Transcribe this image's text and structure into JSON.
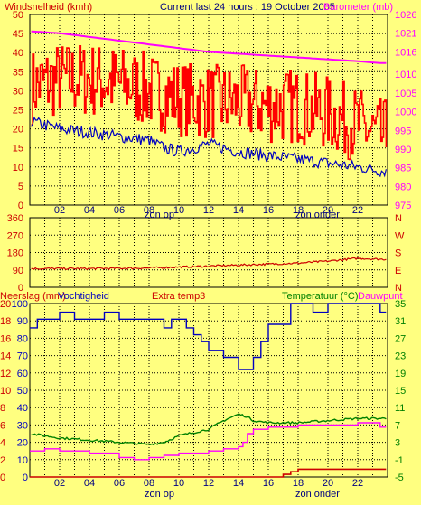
{
  "header": {
    "left_label": "Windsnelheid (kmh)",
    "center_label": "Current last 24 hours : 19 October 2005",
    "right_label": "Barometer (mb)"
  },
  "panel3_header": {
    "rain_label": "Neerslag (mm)",
    "humidity_label": "Vochtigheid",
    "extra_label": "Extra temp3",
    "temp_label": "Temperatuur (°C)",
    "dew_label": "Dauwpunt"
  },
  "markers": {
    "sunrise": "zon op",
    "sunset": "zon onder"
  },
  "colors": {
    "background": "#FFFF80",
    "wind": "#FF0000",
    "wind_avg": "#0000C0",
    "barometer": "#FF00FF",
    "direction": "#CC0000",
    "humidity": "#0000C0",
    "temperature": "#008000",
    "dewpoint": "#FF00FF",
    "rain": "#CC0000"
  },
  "chart_data": [
    {
      "type": "line",
      "name": "wind-barometer",
      "x_ticks": [
        "02",
        "04",
        "06",
        "08",
        "10",
        "12",
        "14",
        "16",
        "18",
        "20",
        "22"
      ],
      "x_range": [
        0,
        24
      ],
      "y_left": {
        "label": "Windsnelheid (kmh)",
        "range": [
          0,
          50
        ],
        "ticks": [
          0,
          5,
          10,
          15,
          20,
          25,
          30,
          35,
          40,
          45,
          50
        ]
      },
      "y_right": {
        "label": "Barometer (mb)",
        "range": [
          975,
          1026
        ],
        "ticks": [
          975,
          980,
          985,
          990,
          995,
          1000,
          1005,
          1010,
          1016,
          1021,
          1026
        ]
      },
      "series": [
        {
          "name": "Windsnelheid (kmh)",
          "axis": "left",
          "style": "jagged",
          "x": [
            0,
            2,
            4,
            6,
            8,
            10,
            12,
            14,
            16,
            18,
            20,
            22,
            23.5
          ],
          "y": [
            30,
            32,
            32,
            31,
            29,
            27,
            26,
            26,
            25,
            25,
            23,
            20,
            17
          ]
        },
        {
          "name": "Windsnelheid (kmh)",
          "axis": "left",
          "x": [
            0,
            2,
            4,
            6,
            8,
            9,
            10,
            12,
            14,
            16,
            18,
            20,
            22,
            23.5
          ],
          "y": [
            22,
            20,
            19,
            18,
            17,
            15,
            14,
            16,
            14,
            13,
            12,
            11,
            10,
            9
          ]
        },
        {
          "name": "Barometer (mb)",
          "axis": "right",
          "x": [
            0,
            2,
            4,
            6,
            8,
            10,
            12,
            14,
            16,
            18,
            20,
            22,
            23.5
          ],
          "y": [
            1021.5,
            1021,
            1020,
            1019,
            1018,
            1017,
            1016,
            1015.5,
            1015,
            1014.5,
            1014,
            1013.5,
            1013
          ]
        }
      ]
    },
    {
      "type": "line",
      "name": "wind-direction",
      "x_range": [
        0,
        24
      ],
      "y_left": {
        "range": [
          0,
          360
        ],
        "ticks": [
          0,
          90,
          180,
          270,
          360
        ]
      },
      "y_right_labels": [
        "N",
        "W",
        "S",
        "E",
        "N"
      ],
      "series": [
        {
          "name": "direction",
          "axis": "left",
          "x": [
            0,
            4,
            8,
            10,
            12,
            14,
            16,
            18,
            20,
            22,
            23.5
          ],
          "y": [
            97,
            97,
            100,
            105,
            110,
            115,
            120,
            125,
            135,
            150,
            145
          ]
        }
      ]
    },
    {
      "type": "line",
      "name": "humidity-temperature",
      "x_ticks": [
        "02",
        "04",
        "06",
        "08",
        "10",
        "12",
        "14",
        "16",
        "18",
        "20",
        "22"
      ],
      "x_range": [
        0,
        24
      ],
      "y_left_outer": {
        "label": "Neerslag (mm)",
        "ticks": [
          0,
          2,
          4,
          6,
          8,
          10,
          12,
          14,
          16,
          18,
          20
        ]
      },
      "y_left_inner": {
        "label": "Vochtigheid",
        "range": [
          0,
          100
        ],
        "ticks": [
          0,
          10,
          20,
          30,
          40,
          50,
          60,
          70,
          80,
          90,
          100
        ]
      },
      "y_right": {
        "label": "Temperatuur (°C)",
        "range": [
          -5,
          35
        ],
        "ticks": [
          -5,
          -1,
          3,
          7,
          11,
          15,
          19,
          23,
          27,
          31,
          35
        ]
      },
      "series": [
        {
          "name": "Vochtigheid",
          "axis": "left_inner",
          "step": true,
          "x": [
            0,
            0.5,
            2,
            3,
            5,
            6,
            7,
            8,
            9,
            9.5,
            10,
            10.5,
            11,
            11.5,
            12,
            12.5,
            13,
            14,
            14.5,
            15,
            15.5,
            16,
            17,
            17.5,
            18,
            19,
            20,
            21,
            22,
            23,
            23.5
          ],
          "y": [
            86,
            91,
            95,
            91,
            95,
            91,
            91,
            91,
            86,
            91,
            91,
            86,
            82,
            78,
            73,
            73,
            69,
            62,
            62,
            69,
            78,
            88,
            88,
            100,
            100,
            95,
            100,
            100,
            100,
            100,
            95
          ]
        },
        {
          "name": "Temperatuur (°C)",
          "axis": "right",
          "x": [
            0,
            2,
            4,
            6,
            8,
            9,
            10,
            12,
            13,
            14,
            14.5,
            15,
            16,
            18,
            20,
            22,
            23.5
          ],
          "y": [
            5,
            4,
            3.5,
            3,
            2.5,
            3,
            4.5,
            6,
            8,
            9.5,
            9,
            8,
            7.5,
            7.5,
            8,
            8.5,
            8.5
          ]
        },
        {
          "name": "Dauwpunt",
          "axis": "right",
          "step": true,
          "x": [
            0,
            1,
            2,
            4,
            6,
            7,
            8,
            9,
            10,
            12,
            13,
            14,
            14.3,
            14.6,
            15,
            16,
            18,
            20,
            22,
            23.5
          ],
          "y": [
            1,
            1.5,
            1,
            0.5,
            -0.5,
            -1,
            -0.5,
            0,
            0.5,
            1,
            1.5,
            2,
            3,
            5,
            6,
            6.5,
            7,
            7,
            7.5,
            6.5
          ]
        },
        {
          "name": "Neerslag (mm)",
          "axis": "left_outer",
          "step": true,
          "x": [
            0,
            16.5,
            17,
            17.5,
            18,
            24
          ],
          "y": [
            0,
            0,
            0.3,
            0.6,
            0.9,
            0.9
          ]
        }
      ]
    }
  ]
}
